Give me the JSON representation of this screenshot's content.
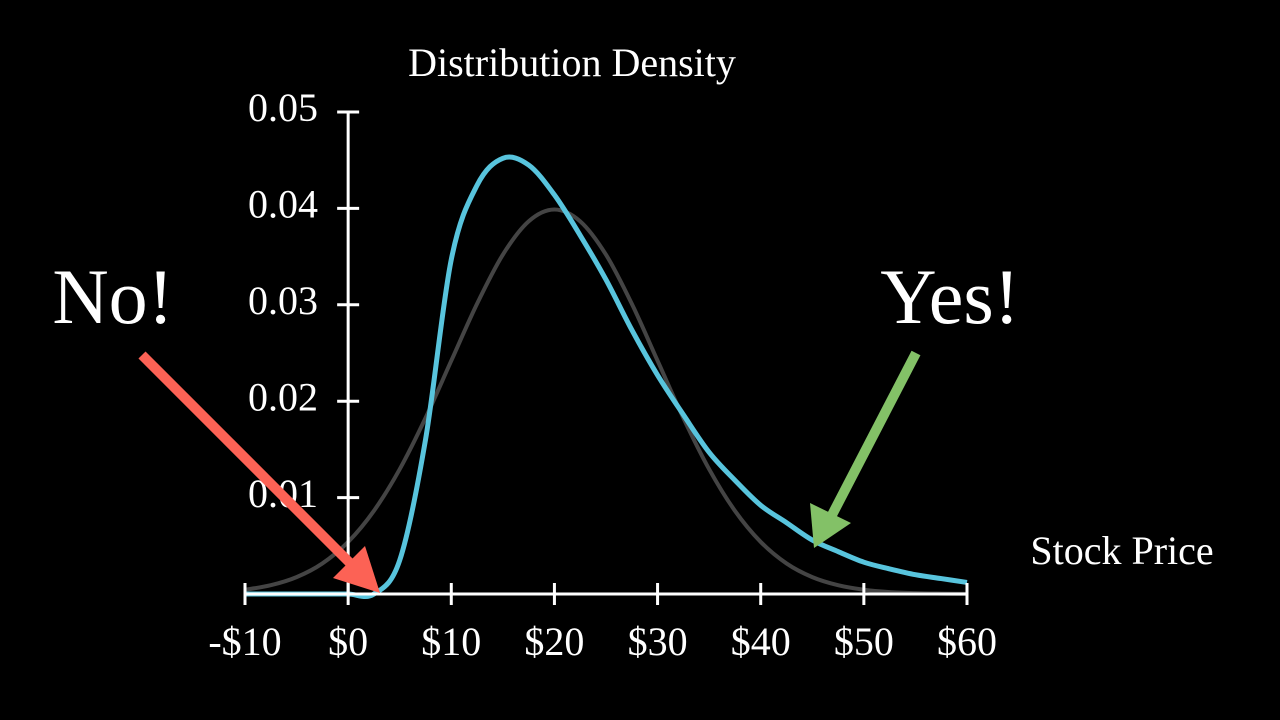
{
  "chart_data": {
    "type": "line",
    "title": "Distribution Density",
    "x_label": "Stock Price",
    "x": [
      -10,
      -7.5,
      -5,
      -2.5,
      0,
      2.5,
      5,
      7.5,
      10,
      12.5,
      15,
      17.5,
      20,
      22.5,
      25,
      27.5,
      30,
      32.5,
      35,
      37.5,
      40,
      42.5,
      45,
      47.5,
      50,
      52.5,
      55,
      57.5,
      60
    ],
    "series": [
      {
        "color": "#444444",
        "values": [
          0.00044,
          0.00091,
          0.00175,
          0.00317,
          0.0054,
          0.00863,
          0.01295,
          0.01826,
          0.0242,
          0.03011,
          0.0352,
          0.03866,
          0.03989,
          0.03866,
          0.0352,
          0.03011,
          0.0242,
          0.01826,
          0.01295,
          0.00863,
          0.0054,
          0.00317,
          0.00175,
          0.00091,
          0.00044,
          0.0002,
          9e-05,
          4e-05,
          1e-05
        ]
      },
      {
        "color": "#58c4dd",
        "values": [
          0,
          0,
          0,
          0,
          0,
          0,
          0.0035,
          0.016,
          0.0347,
          0.0424,
          0.0452,
          0.0445,
          0.0414,
          0.0372,
          0.0326,
          0.0274,
          0.0227,
          0.0186,
          0.0147,
          0.0118,
          0.0092,
          0.0074,
          0.0056,
          0.0044,
          0.0033,
          0.0026,
          0.002,
          0.0016,
          0.0012
        ]
      }
    ],
    "xlim": [
      -10,
      60
    ],
    "xticks": [
      {
        "value": -10,
        "label": "-$10"
      },
      {
        "value": 0,
        "label": "$0"
      },
      {
        "value": 10,
        "label": "$10"
      },
      {
        "value": 20,
        "label": "$20"
      },
      {
        "value": 30,
        "label": "$30"
      },
      {
        "value": 40,
        "label": "$40"
      },
      {
        "value": 50,
        "label": "$50"
      },
      {
        "value": 60,
        "label": "$60"
      }
    ],
    "ylim": [
      0,
      0.05
    ],
    "yticks": [
      0.01,
      0.02,
      0.03,
      0.04,
      0.05
    ],
    "annotations": [
      {
        "text": "No!",
        "color": "#fc6255"
      },
      {
        "text": "Yes!",
        "color": "#83c167"
      }
    ]
  }
}
